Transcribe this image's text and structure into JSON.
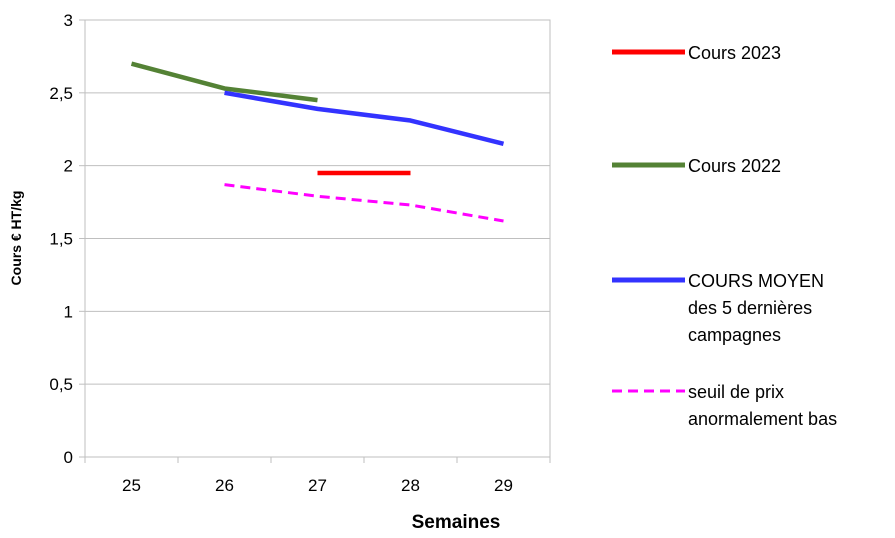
{
  "chart_data": {
    "type": "line",
    "xlabel": "Semaines",
    "ylabel": "Cours € HT/kg",
    "categories": [
      "25",
      "26",
      "27",
      "28",
      "29"
    ],
    "y_tick_labels": [
      "0",
      "0,5",
      "1",
      "1,5",
      "2",
      "2,5",
      "3"
    ],
    "ylim": [
      0,
      3
    ],
    "grid": "horizontal",
    "legend_position": "right",
    "series": [
      {
        "name": "Cours 2023",
        "color": "#ff0000",
        "style": "solid",
        "values": [
          null,
          null,
          1.95,
          1.95,
          null
        ]
      },
      {
        "name": "Cours 2022",
        "color": "#548235",
        "style": "solid",
        "values": [
          2.7,
          2.53,
          2.45,
          null,
          null
        ]
      },
      {
        "name": "COURS MOYEN des 5 dernières campagnes",
        "color": "#3333ff",
        "style": "solid",
        "values": [
          null,
          2.5,
          2.39,
          2.31,
          2.15
        ]
      },
      {
        "name": "seuil de prix anormalement bas",
        "color": "#ff00ff",
        "style": "dashed",
        "values": [
          null,
          1.87,
          1.79,
          1.73,
          1.62
        ]
      }
    ],
    "legend_lines": [
      [
        "Cours 2023"
      ],
      [
        "Cours 2022"
      ],
      [
        "COURS MOYEN",
        "des 5 dernières",
        "campagnes"
      ],
      [
        "seuil de prix",
        "anormalement bas"
      ]
    ]
  }
}
